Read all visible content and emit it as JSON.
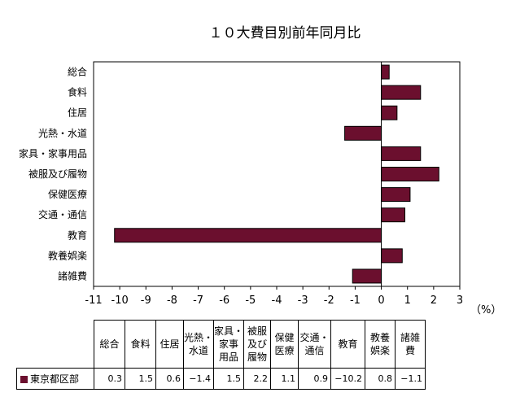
{
  "chart_data": {
    "type": "bar",
    "orientation": "horizontal",
    "title": "１０大費目別前年同月比",
    "unit_label": "（%）",
    "categories": [
      "総合",
      "食料",
      "住居",
      "光熱・水道",
      "家具・家事用品",
      "被服及び履物",
      "保健医療",
      "交通・通信",
      "教育",
      "教養娯楽",
      "諸雑費"
    ],
    "series": [
      {
        "name": "東京都区部",
        "values": [
          0.3,
          1.5,
          0.6,
          -1.4,
          1.5,
          2.2,
          1.1,
          0.9,
          -10.2,
          0.8,
          -1.1
        ],
        "color": "#6b0f2e"
      }
    ],
    "xlim": [
      -11,
      3
    ],
    "x_ticks": [
      -11,
      -10,
      -9,
      -8,
      -7,
      -6,
      -5,
      -4,
      -3,
      -2,
      -1,
      0,
      1,
      2,
      3
    ],
    "grid": false,
    "legend": "data-table-below"
  },
  "table": {
    "headers": [
      "総合",
      "食料",
      "住居",
      "光熱・\n水道",
      "家具・\n家事\n用品",
      "被服\n及び\n履物",
      "保健\n医療",
      "交通・\n通信",
      "教育",
      "教養\n娯楽",
      "諸雑\n費"
    ],
    "row_label": "東京都区部",
    "row_values": [
      "0.3",
      "1.5",
      "0.6",
      "−1.4",
      "1.5",
      "2.2",
      "1.1",
      "0.9",
      "−10.2",
      "0.8",
      "−1.1"
    ]
  }
}
